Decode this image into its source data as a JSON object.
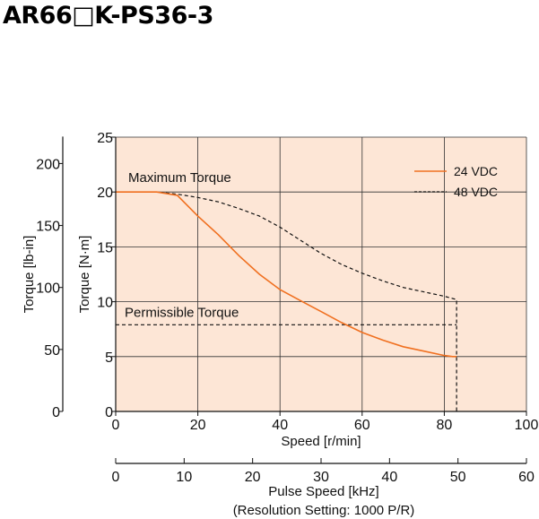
{
  "title": "AR66□K-PS36-3",
  "colors": {
    "plot_background": "#fde6d6",
    "series_24vdc": "#f07020",
    "series_48vdc": "#111111",
    "grid": "#333333"
  },
  "chart_data": {
    "type": "line",
    "xlabel": "Speed [r/min]",
    "ylabel_left_outer": "Torque [lb-in]",
    "ylabel_left_inner": "Torque [N·m]",
    "xlim": [
      0,
      100
    ],
    "ylim": [
      0,
      25
    ],
    "x_ticks": [
      "0",
      "20",
      "40",
      "60",
      "80",
      "100"
    ],
    "y_ticks": [
      "0",
      "5",
      "10",
      "15",
      "20",
      "25"
    ],
    "y_grid": [
      0,
      5,
      10,
      15,
      20,
      25
    ],
    "x_grid": [
      0,
      20,
      40,
      60,
      80,
      100
    ],
    "lbin_ticks": [
      {
        "label": "0",
        "value": 0
      },
      {
        "label": "50",
        "value": 50
      },
      {
        "label": "100",
        "value": 100
      },
      {
        "label": "150",
        "value": 150
      },
      {
        "label": "200",
        "value": 200
      }
    ],
    "lbin_per_nm": 8.8507,
    "secondary_axis": {
      "label_line1": "Pulse Speed [kHz]",
      "label_line2": "(Resolution Setting: 1000 P/R)",
      "range": [
        0,
        60
      ],
      "ticks": [
        "0",
        "10",
        "20",
        "30",
        "40",
        "50",
        "60"
      ]
    },
    "legend": {
      "position": "top-right",
      "entries": [
        {
          "label": "24 VDC",
          "style": "solid"
        },
        {
          "label": "48 VDC",
          "style": "dashed"
        }
      ]
    },
    "annotations": {
      "maximum_torque": "Maximum Torque",
      "permissible_torque": "Permissible Torque"
    },
    "series": [
      {
        "name": "24 VDC",
        "points": [
          [
            0,
            20
          ],
          [
            10,
            20
          ],
          [
            15,
            19.7
          ],
          [
            20,
            17.8
          ],
          [
            25,
            16.1
          ],
          [
            30,
            14.2
          ],
          [
            35,
            12.5
          ],
          [
            40,
            11.1
          ],
          [
            45,
            10.1
          ],
          [
            50,
            9.1
          ],
          [
            55,
            8.1
          ],
          [
            60,
            7.2
          ],
          [
            65,
            6.5
          ],
          [
            70,
            5.9
          ],
          [
            75,
            5.5
          ],
          [
            80,
            5.1
          ],
          [
            82,
            5.0
          ],
          [
            83,
            5.0
          ],
          [
            83,
            0
          ]
        ]
      },
      {
        "name": "48 VDC",
        "points": [
          [
            0,
            20
          ],
          [
            10,
            20
          ],
          [
            15,
            19.8
          ],
          [
            20,
            19.5
          ],
          [
            25,
            19.1
          ],
          [
            30,
            18.5
          ],
          [
            35,
            17.8
          ],
          [
            40,
            16.8
          ],
          [
            45,
            15.6
          ],
          [
            50,
            14.4
          ],
          [
            55,
            13.4
          ],
          [
            60,
            12.6
          ],
          [
            65,
            11.9
          ],
          [
            70,
            11.3
          ],
          [
            75,
            10.9
          ],
          [
            80,
            10.5
          ],
          [
            83,
            10.2
          ],
          [
            83,
            0
          ]
        ]
      },
      {
        "name": "Permissible Torque",
        "points": [
          [
            0,
            7.9
          ],
          [
            83,
            7.9
          ]
        ]
      }
    ]
  }
}
